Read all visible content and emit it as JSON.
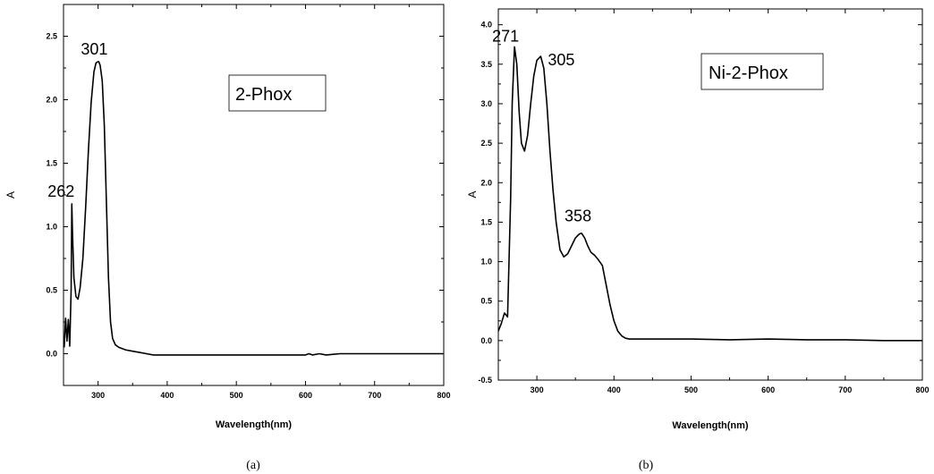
{
  "chart_data": [
    {
      "type": "line",
      "caption": "(a)",
      "legend_label": "2-Phox",
      "legend_position": "top-right",
      "xlabel": "Wavelength(nm)",
      "ylabel": "A",
      "xlim": [
        250,
        800
      ],
      "ylim": [
        -0.25,
        2.75
      ],
      "x_ticks": [
        300,
        400,
        500,
        600,
        700,
        800
      ],
      "y_ticks": [
        0.0,
        0.5,
        1.0,
        1.5,
        2.0,
        2.5
      ],
      "y_tick_labels": [
        "0.0",
        "0.5",
        "1.0",
        "1.5",
        "2.0",
        "2.5"
      ],
      "grid": false,
      "annotations": [
        {
          "text": "262",
          "x": 262,
          "y": 1.18
        },
        {
          "text": "301",
          "x": 301,
          "y": 2.3
        }
      ],
      "series": [
        {
          "x": [
            251,
            253,
            255,
            257,
            259,
            261,
            262,
            263,
            265,
            268,
            271,
            274,
            278,
            282,
            286,
            290,
            294,
            297,
            300,
            301,
            303,
            306,
            309,
            312,
            315,
            318,
            321,
            325,
            330,
            340,
            350,
            360,
            370,
            380,
            400,
            450,
            500,
            550,
            600,
            605,
            610,
            620,
            630,
            640,
            650,
            700,
            750,
            800
          ],
          "y": [
            0.05,
            0.28,
            0.1,
            0.27,
            0.06,
            0.5,
            1.18,
            0.95,
            0.6,
            0.45,
            0.43,
            0.52,
            0.75,
            1.15,
            1.6,
            1.98,
            2.22,
            2.29,
            2.3,
            2.3,
            2.27,
            2.15,
            1.8,
            1.2,
            0.6,
            0.25,
            0.12,
            0.07,
            0.05,
            0.03,
            0.02,
            0.01,
            0.0,
            -0.01,
            -0.01,
            -0.01,
            -0.01,
            -0.01,
            -0.01,
            0.0,
            -0.01,
            0.0,
            -0.01,
            -0.005,
            0.0,
            0.0,
            0.0,
            0.0
          ]
        }
      ]
    },
    {
      "type": "line",
      "caption": "(b)",
      "legend_label": "Ni-2-Phox",
      "legend_position": "top-right",
      "xlabel": "Wavelength(nm)",
      "ylabel": "A",
      "xlim": [
        250,
        800
      ],
      "ylim": [
        -0.5,
        4.2
      ],
      "x_ticks": [
        300,
        400,
        500,
        600,
        700,
        800
      ],
      "y_ticks": [
        -0.5,
        0.0,
        0.5,
        1.0,
        1.5,
        2.0,
        2.5,
        3.0,
        3.5,
        4.0
      ],
      "y_tick_labels": [
        "-0.5",
        "0.0",
        "0.5",
        "1.0",
        "1.5",
        "2.0",
        "2.5",
        "3.0",
        "3.5",
        "4.0"
      ],
      "grid": false,
      "annotations": [
        {
          "text": "271",
          "x": 271,
          "y": 3.72
        },
        {
          "text": "305",
          "x": 305,
          "y": 3.6
        },
        {
          "text": "358",
          "x": 358,
          "y": 1.35
        }
      ],
      "series": [
        {
          "x": [
            250,
            254,
            258,
            262,
            266,
            268,
            271,
            274,
            277,
            280,
            284,
            288,
            292,
            296,
            300,
            305,
            309,
            313,
            317,
            321,
            325,
            330,
            335,
            340,
            345,
            350,
            355,
            358,
            362,
            366,
            370,
            375,
            380,
            385,
            390,
            395,
            400,
            405,
            410,
            415,
            420,
            430,
            450,
            500,
            550,
            600,
            650,
            700,
            750,
            800
          ],
          "y": [
            0.12,
            0.22,
            0.35,
            0.3,
            1.8,
            3.0,
            3.72,
            3.5,
            2.9,
            2.5,
            2.4,
            2.6,
            3.0,
            3.35,
            3.55,
            3.6,
            3.45,
            3.0,
            2.4,
            1.9,
            1.5,
            1.15,
            1.06,
            1.1,
            1.2,
            1.3,
            1.35,
            1.36,
            1.3,
            1.2,
            1.12,
            1.08,
            1.02,
            0.95,
            0.7,
            0.45,
            0.25,
            0.12,
            0.06,
            0.03,
            0.02,
            0.02,
            0.02,
            0.02,
            0.01,
            0.02,
            0.01,
            0.01,
            0.0,
            0.0
          ]
        }
      ]
    }
  ]
}
